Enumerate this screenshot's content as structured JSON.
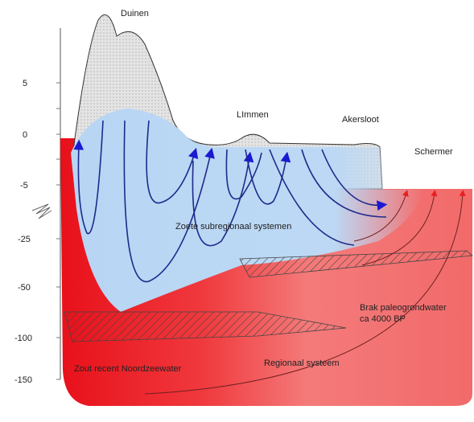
{
  "labels": {
    "dunes": "Duinen",
    "limmen": "LImmen",
    "akersloot": "Akersloot",
    "schermer": "Schermer",
    "fresh": "Zoete subregionaal systemen",
    "brackish": [
      "Brak paleogrondwater",
      "ca 4000 BP"
    ],
    "salt": "Zout recent Noordzeewater",
    "regional": "Regionaal systeem"
  },
  "depth_scale": {
    "ticks": [
      5,
      0,
      -5,
      -25,
      -50,
      -100,
      -150
    ]
  }
}
